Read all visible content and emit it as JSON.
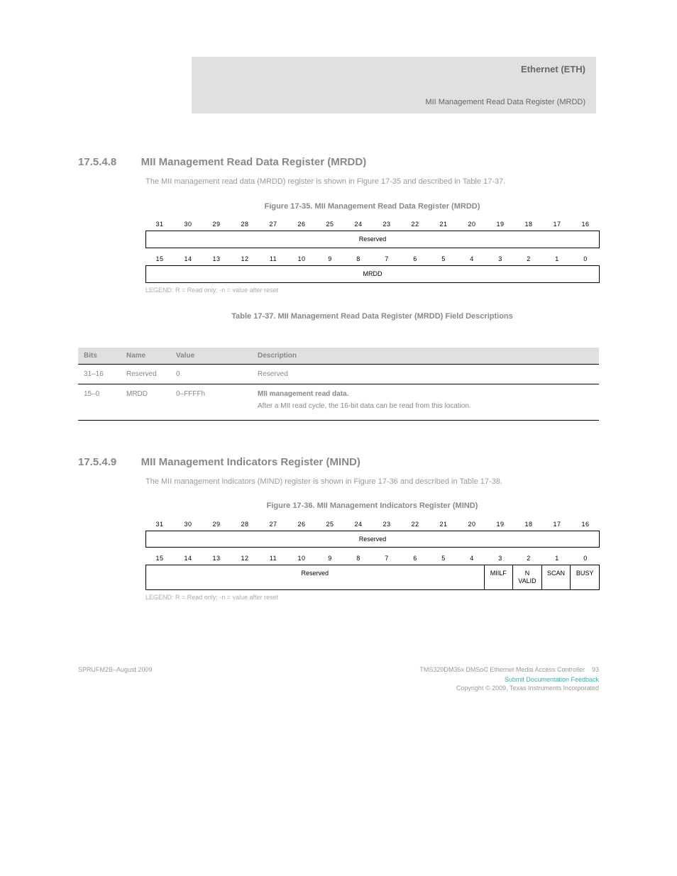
{
  "colors": {
    "page_bg": "#ffffff",
    "band_bg": "#e0e0e0",
    "text_main": "#000000",
    "text_muted": "#888888",
    "border": "#000000"
  },
  "header": {
    "chapter": "Ethernet (ETH)",
    "subtitle": "MII Management Read Data Register (MRDD)"
  },
  "section1": {
    "number": "17.5.4.8",
    "title": "MII Management Read Data Register (MRDD)",
    "intro": "The MII management read data (MRDD) register is shown in Figure 17-35 and described in Table 17-37.",
    "figcap": "Figure 17-35. MII Management Read Data Register (MRDD)",
    "bits_hi": [
      "31",
      "30",
      "29",
      "28",
      "27",
      "26",
      "25",
      "24",
      "23",
      "22",
      "21",
      "20",
      "19",
      "18",
      "17",
      "16"
    ],
    "bits_lo": [
      "15",
      "14",
      "13",
      "12",
      "11",
      "10",
      "9",
      "8",
      "7",
      "6",
      "5",
      "4",
      "3",
      "2",
      "1",
      "0"
    ],
    "field_hi": "Reserved",
    "field_lo": "MRDD",
    "tabcap": "Table 17-37. MII Management Read Data Register (MRDD) Field Descriptions",
    "cols": {
      "bits": "Bits",
      "name": "Name",
      "value": "Value",
      "desc": "Description"
    },
    "rows": [
      {
        "bits": "31–16",
        "name": "Reserved",
        "value": "0",
        "desc": "Reserved"
      },
      {
        "bits": "15–0",
        "name": "MRDD",
        "value": "0–FFFFh",
        "desc_label": "MII management read data.",
        "desc_body": "After a MII read cycle, the 16-bit data can be read from this location."
      }
    ]
  },
  "section2": {
    "number": "17.5.4.9",
    "title": "MII Management Indicators Register (MIND)",
    "intro": "The MII management indicators (MIND) register is shown in Figure 17-36 and described in Table 17-38.",
    "figcap": "Figure 17-36. MII Management Indicators Register (MIND)",
    "bits_hi": [
      "31",
      "30",
      "29",
      "28",
      "27",
      "26",
      "25",
      "24",
      "23",
      "22",
      "21",
      "20",
      "19",
      "18",
      "17",
      "16"
    ],
    "bits_lo": [
      "15",
      "14",
      "13",
      "12",
      "11",
      "10",
      "9",
      "8",
      "7",
      "6",
      "5",
      "4",
      "3",
      "2",
      "1",
      "0"
    ],
    "field_hi": "Reserved",
    "fields_lo": [
      {
        "span": 12,
        "label": "Reserved"
      },
      {
        "span": 1,
        "label": "MIILF"
      },
      {
        "span": 1,
        "label": "N VALID"
      },
      {
        "span": 1,
        "label": "SCAN"
      },
      {
        "span": 1,
        "label": "BUSY"
      }
    ]
  },
  "footer": {
    "left": "SPRUFM2B–August 2009",
    "right_title": "TMS320DM36x DMSoC Ethernet Media Access Controller",
    "page": "93",
    "copyright1": "Submit Documentation Feedback",
    "copyright2": "Copyright © 2009, Texas Instruments Incorporated"
  }
}
